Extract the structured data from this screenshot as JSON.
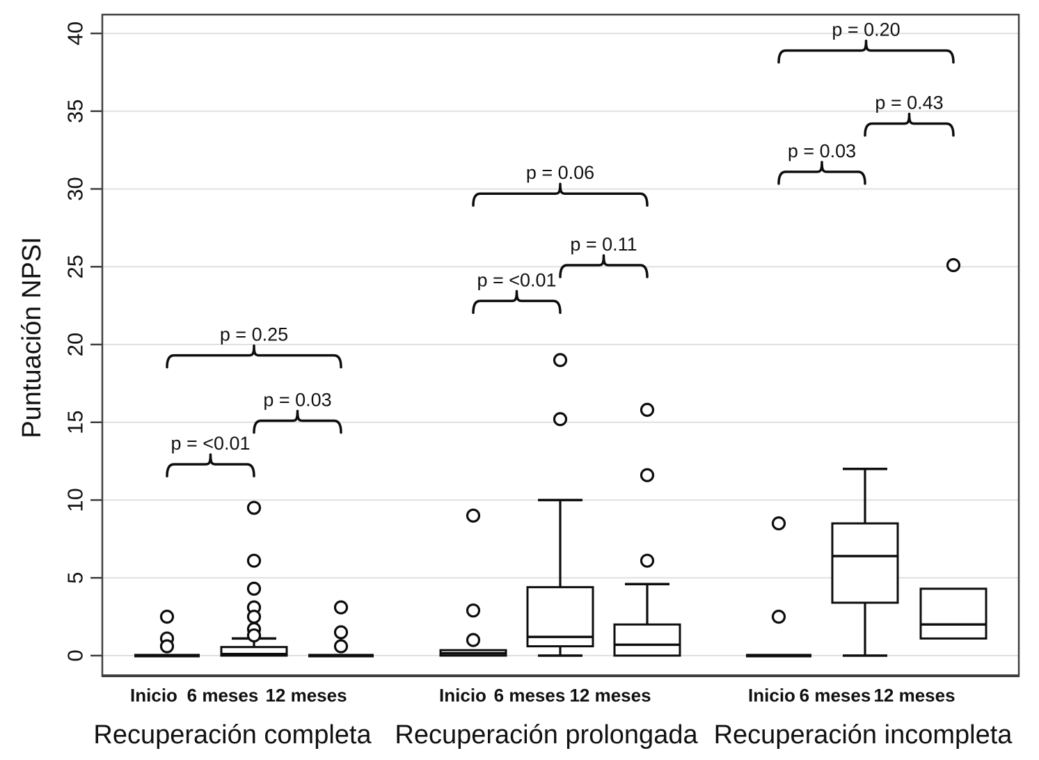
{
  "figure": {
    "background": "#ffffff",
    "axis_color": "#3f3f3f",
    "grid_color": "#e0e0e0",
    "ink_color": "#0d0d0d"
  },
  "chart_data": {
    "type": "boxplot",
    "title": "",
    "ylabel": "Puntuación NPSI",
    "xlabel": "",
    "ylim": [
      0,
      40
    ],
    "yticks": [
      0,
      5,
      10,
      15,
      20,
      25,
      30,
      35,
      40
    ],
    "grid": "horizontal gridlines at each y tick",
    "legend": "none",
    "time_labels": [
      "Inicio",
      "6 meses",
      "12 meses"
    ],
    "groups": [
      {
        "label": "Recuperación completa",
        "boxes": [
          {
            "label": "Inicio",
            "q1": 0,
            "median": 0,
            "q3": 0,
            "whisker_low": 0,
            "whisker_high": 0,
            "outliers": [
              2.5,
              1.1,
              0.6
            ]
          },
          {
            "label": "6 meses",
            "q1": 0,
            "median": 0.1,
            "q3": 0.55,
            "whisker_low": 0,
            "whisker_high": 1.1,
            "outliers": [
              9.5,
              6.1,
              4.3,
              3.1,
              2.5,
              1.7,
              1.3
            ]
          },
          {
            "label": "12 meses",
            "q1": 0,
            "median": 0,
            "q3": 0,
            "whisker_low": 0,
            "whisker_high": 0,
            "outliers": [
              3.1,
              1.5,
              0.6
            ]
          }
        ],
        "comparisons": [
          {
            "from": 0,
            "to": 1,
            "label": "p = <0.01",
            "y": 12.3
          },
          {
            "from": 1,
            "to": 2,
            "label": "p = 0.03",
            "y": 15.1
          },
          {
            "from": 0,
            "to": 2,
            "label": "p = 0.25",
            "y": 19.3
          }
        ]
      },
      {
        "label": "Recuperación prolongada",
        "boxes": [
          {
            "label": "Inicio",
            "q1": 0,
            "median": 0.15,
            "q3": 0.35,
            "whisker_low": 0,
            "whisker_high": 0.35,
            "outliers": [
              9.0,
              2.9,
              1.0
            ]
          },
          {
            "label": "6 meses",
            "q1": 0.6,
            "median": 1.2,
            "q3": 4.4,
            "whisker_low": 0,
            "whisker_high": 10.0,
            "outliers": [
              19.0,
              15.2
            ]
          },
          {
            "label": "12 meses",
            "q1": 0,
            "median": 0.7,
            "q3": 2.0,
            "whisker_low": 0,
            "whisker_high": 4.6,
            "outliers": [
              15.8,
              11.6,
              6.1
            ]
          }
        ],
        "comparisons": [
          {
            "from": 0,
            "to": 1,
            "label": "p = <0.01",
            "y": 22.8
          },
          {
            "from": 1,
            "to": 2,
            "label": "p = 0.11",
            "y": 25.1
          },
          {
            "from": 0,
            "to": 2,
            "label": "p = 0.06",
            "y": 29.7
          }
        ]
      },
      {
        "label": "Recuperación incompleta",
        "boxes": [
          {
            "label": "Inicio",
            "q1": 0,
            "median": 0,
            "q3": 0,
            "whisker_low": 0,
            "whisker_high": 0,
            "outliers": [
              8.5,
              2.5
            ]
          },
          {
            "label": "6 meses",
            "q1": 3.4,
            "median": 6.4,
            "q3": 8.5,
            "whisker_low": 0,
            "whisker_high": 12.0,
            "outliers": []
          },
          {
            "label": "12 meses",
            "q1": 1.1,
            "median": 2.0,
            "q3": 4.3,
            "whisker_low": 1.1,
            "whisker_high": 4.3,
            "outliers": [
              25.1
            ]
          }
        ],
        "comparisons": [
          {
            "from": 0,
            "to": 1,
            "label": "p = 0.03",
            "y": 31.1
          },
          {
            "from": 1,
            "to": 2,
            "label": "p = 0.43",
            "y": 34.2
          },
          {
            "from": 0,
            "to": 2,
            "label": "p = 0.20",
            "y": 38.9
          }
        ]
      }
    ]
  }
}
